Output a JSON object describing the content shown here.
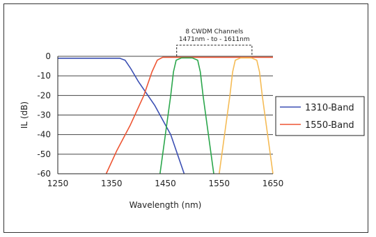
{
  "chart_data": {
    "type": "line",
    "title": "",
    "xlabel": "Wavelength (nm)",
    "ylabel": "IL (dB)",
    "xlim": [
      1250,
      1650
    ],
    "ylim": [
      -60,
      0
    ],
    "x_ticks": [
      "1250",
      "1350",
      "1450",
      "1550",
      "1650"
    ],
    "x_tick_values": [
      1250,
      1350,
      1450,
      1550,
      1650
    ],
    "y_ticks": [
      "0",
      "-10",
      "-20",
      "-30",
      "-40",
      "-50",
      "-60"
    ],
    "y_tick_values": [
      0,
      -10,
      -20,
      -30,
      -40,
      -50,
      -60
    ],
    "grid": "horizontal",
    "legend_position": "right",
    "annotation": {
      "line1": "8 CWDM Channels",
      "line2": "1471nm  - to -  1611nm",
      "x_range": [
        1471,
        1611
      ]
    },
    "series": [
      {
        "name": "1310-Band",
        "color": "#3b4fb3",
        "in_legend": true,
        "points": [
          [
            1250,
            -1
          ],
          [
            1365,
            -1
          ],
          [
            1375,
            -2
          ],
          [
            1385,
            -6
          ],
          [
            1400,
            -13
          ],
          [
            1430,
            -25
          ],
          [
            1460,
            -40
          ],
          [
            1485,
            -60
          ]
        ]
      },
      {
        "name": "1550-Band",
        "color": "#ee5533",
        "in_legend": true,
        "points": [
          [
            1340,
            -60
          ],
          [
            1360,
            -48
          ],
          [
            1385,
            -35
          ],
          [
            1410,
            -20
          ],
          [
            1425,
            -8
          ],
          [
            1435,
            -2
          ],
          [
            1445,
            -0.5
          ],
          [
            1650,
            -0.5
          ]
        ]
      },
      {
        "name": "",
        "color": "#2aa64b",
        "in_legend": false,
        "points": [
          [
            1440,
            -60
          ],
          [
            1450,
            -40
          ],
          [
            1460,
            -20
          ],
          [
            1465,
            -8
          ],
          [
            1470,
            -2
          ],
          [
            1480,
            -0.8
          ],
          [
            1500,
            -0.8
          ],
          [
            1510,
            -2
          ],
          [
            1515,
            -8
          ],
          [
            1520,
            -20
          ],
          [
            1530,
            -40
          ],
          [
            1540,
            -60
          ]
        ]
      },
      {
        "name": "",
        "color": "#f5bb55",
        "in_legend": false,
        "points": [
          [
            1550,
            -60
          ],
          [
            1560,
            -40
          ],
          [
            1570,
            -20
          ],
          [
            1575,
            -8
          ],
          [
            1580,
            -2
          ],
          [
            1590,
            -0.8
          ],
          [
            1610,
            -0.8
          ],
          [
            1620,
            -2
          ],
          [
            1625,
            -8
          ],
          [
            1630,
            -20
          ],
          [
            1640,
            -40
          ],
          [
            1650,
            -60
          ]
        ]
      }
    ]
  }
}
